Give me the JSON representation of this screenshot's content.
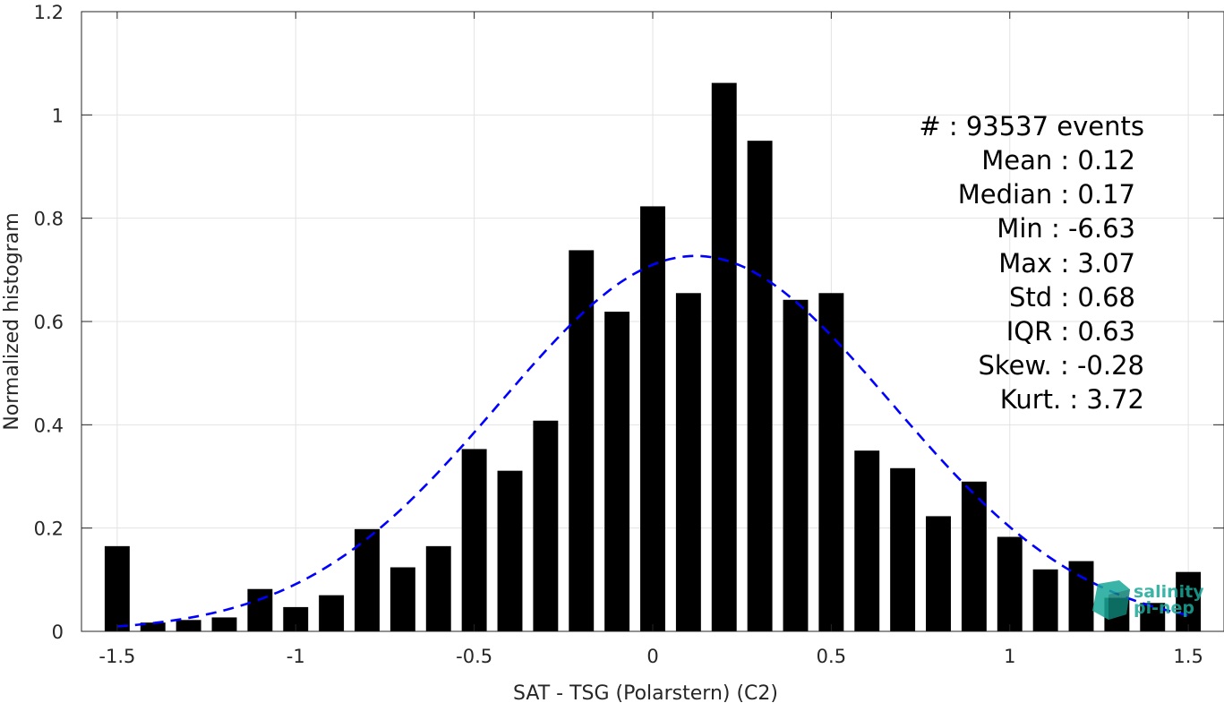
{
  "chart_data": {
    "type": "bar",
    "xlabel": "SAT - TSG (Polarstern) (C2)",
    "ylabel": "Normalized histogram",
    "xlim": [
      -1.6,
      1.6
    ],
    "ylim": [
      0,
      1.2
    ],
    "grid": true,
    "x_ticks": [
      "-1.5",
      "-1",
      "-0.5",
      "0",
      "0.5",
      "1",
      "1.5"
    ],
    "y_ticks": [
      "0",
      "0.2",
      "0.4",
      "0.6",
      "0.8",
      "1",
      "1.2"
    ],
    "bin_centers": [
      -1.5,
      -1.4,
      -1.3,
      -1.2,
      -1.1,
      -1.0,
      -0.9,
      -0.8,
      -0.7,
      -0.6,
      -0.5,
      -0.4,
      -0.3,
      -0.2,
      -0.1,
      0.0,
      0.1,
      0.2,
      0.3,
      0.4,
      0.5,
      0.6,
      0.7,
      0.8,
      0.9,
      1.0,
      1.1,
      1.2,
      1.3,
      1.4,
      1.5
    ],
    "values": [
      0.165,
      0.017,
      0.022,
      0.027,
      0.082,
      0.047,
      0.07,
      0.198,
      0.124,
      0.165,
      0.353,
      0.311,
      0.408,
      0.738,
      0.619,
      0.823,
      0.655,
      1.062,
      0.95,
      0.642,
      0.655,
      0.35,
      0.316,
      0.223,
      0.29,
      0.183,
      0.12,
      0.136,
      0.065,
      0.055,
      0.115
    ],
    "fit_curve": {
      "type": "normal",
      "mean": 0.12,
      "std": 0.55,
      "peak": 0.727,
      "color": "#0000ff",
      "style": "dashed",
      "x_range": [
        -1.5,
        1.5
      ]
    },
    "bar_color": "#000000",
    "stats": [
      "#  : 93537 events",
      "Mean : 0.12",
      "Median : 0.17",
      "Min : -6.63",
      "Max : 3.07",
      "Std : 0.68",
      "IQR : 0.63",
      "Skew. : -0.28",
      "Kurt. : 3.72"
    ]
  },
  "logo": {
    "line1": "salinity",
    "line2": "pi-nep",
    "color": "#1aa89a"
  }
}
